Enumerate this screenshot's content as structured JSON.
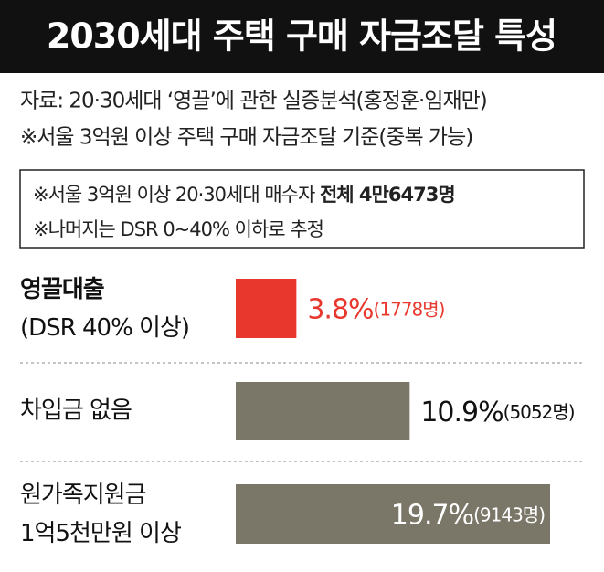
{
  "chart_data": {
    "type": "bar",
    "orientation": "horizontal",
    "title": "2030세대 주택 구매 자금조달 특성",
    "source": [
      "자료: 20·30세대 ‘영끌’에 관한 실증분석(홍정훈·임재만)",
      "※서울 3억원 이상 주택 구매 자금조달 기준(중복 가능)"
    ],
    "note": {
      "text": "※서울 3억원 이상 20·30세대 매수자",
      "emphasis": "전체 4만6473명",
      "second": "※나머지는 DSR 0~40% 이하로 추정"
    },
    "categories": [
      [
        "영끌대출",
        "(DSR 40% 이상)"
      ],
      [
        "차입금 없음"
      ],
      [
        "원가족지원금",
        "1억5천만원 이상"
      ]
    ],
    "values": [
      3.8,
      10.9,
      19.7
    ],
    "value_labels": [
      "3.8%",
      "10.9%",
      "19.7%"
    ],
    "count_labels": [
      "(1778명)",
      "(5052명)",
      "(9143명)"
    ],
    "colors": [
      "#e8382e",
      "#7a7768",
      "#7a7768"
    ]
  }
}
